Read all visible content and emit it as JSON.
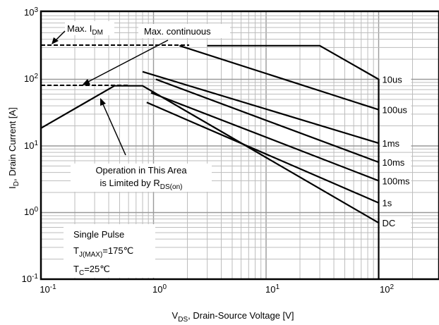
{
  "chart_data": {
    "type": "line",
    "title": "",
    "xlabel": {
      "main": "V",
      "sub": "DS",
      "rest": ", Drain-Source Voltage [V]"
    },
    "ylabel": {
      "main": "I",
      "sub": "D",
      "rest": ", Drain Current [A]"
    },
    "x_scale": "log",
    "y_scale": "log",
    "xlim": [
      0.1,
      300
    ],
    "ylim": [
      0.1,
      1000
    ],
    "grid": true,
    "x_ticks": [
      {
        "value": 0.1,
        "base": "10",
        "exp": "-1"
      },
      {
        "value": 1,
        "base": "10",
        "exp": "0"
      },
      {
        "value": 10,
        "base": "10",
        "exp": "1"
      },
      {
        "value": 100,
        "base": "10",
        "exp": "2"
      }
    ],
    "y_ticks": [
      {
        "value": 0.1,
        "base": "10",
        "exp": "-1"
      },
      {
        "value": 1,
        "base": "10",
        "exp": "0"
      },
      {
        "value": 10,
        "base": "10",
        "exp": "1"
      },
      {
        "value": 100,
        "base": "10",
        "exp": "2"
      },
      {
        "value": 1000,
        "base": "10",
        "exp": "3"
      }
    ],
    "series": [
      {
        "name": "10us",
        "points": [
          [
            3.0,
            320
          ],
          [
            30,
            320
          ],
          [
            100,
            100
          ]
        ]
      },
      {
        "name": "100us",
        "points": [
          [
            1.7,
            320
          ],
          [
            100,
            35
          ]
        ]
      },
      {
        "name": "1ms",
        "points": [
          [
            0.8,
            130
          ],
          [
            100,
            11
          ]
        ]
      },
      {
        "name": "10ms",
        "points": [
          [
            1.05,
            100
          ],
          [
            100,
            5.7
          ]
        ]
      },
      {
        "name": "100ms",
        "points": [
          [
            0.95,
            63
          ],
          [
            100,
            3.0
          ]
        ]
      },
      {
        "name": "1s",
        "points": [
          [
            0.87,
            45
          ],
          [
            100,
            1.4
          ]
        ]
      },
      {
        "name": "DC",
        "points": [
          [
            0.1,
            18.5
          ],
          [
            0.45,
            80
          ],
          [
            0.8,
            80
          ],
          [
            100,
            0.7
          ]
        ]
      }
    ],
    "reference_lines": [
      {
        "label": "Max. I",
        "label_sub": "DM",
        "value": 320
      },
      {
        "label": "Max. continuous",
        "value": 80
      }
    ],
    "region": {
      "line1": "Operation in This Area",
      "line2_main": "is Limited by R",
      "line2_sub": "DS(on)"
    },
    "conditions": {
      "line1": "Single Pulse",
      "line2_main": "T",
      "line2_sub": "J(MAX)",
      "line2_rest": "=175℃",
      "line3_main": "T",
      "line3_sub": "C",
      "line3_rest": "=25℃"
    },
    "boundary_x": 100
  }
}
